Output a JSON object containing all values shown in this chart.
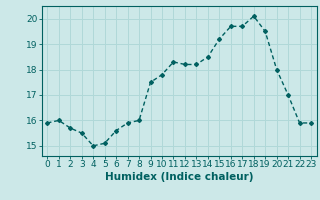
{
  "x": [
    0,
    1,
    2,
    3,
    4,
    5,
    6,
    7,
    8,
    9,
    10,
    11,
    12,
    13,
    14,
    15,
    16,
    17,
    18,
    19,
    20,
    21,
    22,
    23
  ],
  "y": [
    15.9,
    16.0,
    15.7,
    15.5,
    15.0,
    15.1,
    15.6,
    15.9,
    16.0,
    17.5,
    17.8,
    18.3,
    18.2,
    18.2,
    18.5,
    19.2,
    19.7,
    19.7,
    20.1,
    19.5,
    18.0,
    17.0,
    15.9,
    15.9
  ],
  "line_color": "#006060",
  "marker": "D",
  "marker_size": 2.0,
  "bg_color": "#cce8e8",
  "grid_color": "#b0d8d8",
  "xlabel": "Humidex (Indice chaleur)",
  "ylim": [
    14.6,
    20.5
  ],
  "xlim": [
    -0.5,
    23.5
  ],
  "yticks": [
    15,
    16,
    17,
    18,
    19,
    20
  ],
  "xticks": [
    0,
    1,
    2,
    3,
    4,
    5,
    6,
    7,
    8,
    9,
    10,
    11,
    12,
    13,
    14,
    15,
    16,
    17,
    18,
    19,
    20,
    21,
    22,
    23
  ],
  "tick_color": "#006060",
  "label_color": "#006060",
  "font_size_xlabel": 7.5,
  "font_size_tick": 6.5,
  "linewidth": 1.0
}
